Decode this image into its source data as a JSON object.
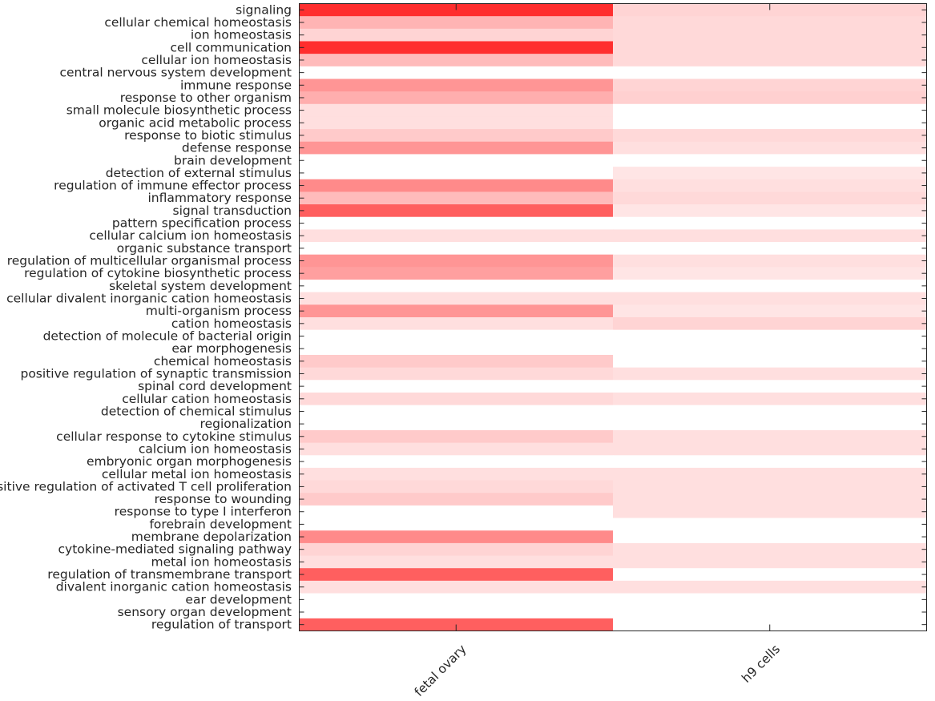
{
  "chart_data": {
    "type": "heatmap",
    "title": "",
    "xlabel": "",
    "ylabel": "",
    "color_low": "#ffffff",
    "color_high": "#ff2a2a",
    "value_range": [
      0,
      1
    ],
    "columns": [
      "fetal ovary",
      "h9 cells"
    ],
    "rows": [
      "signaling",
      "cellular chemical homeostasis",
      "ion homeostasis",
      "cell communication",
      "cellular ion homeostasis",
      "central nervous system development",
      "immune response",
      "response to other organism",
      "small molecule biosynthetic process",
      "organic acid metabolic process",
      "response to biotic stimulus",
      "defense response",
      "brain development",
      "detection of external stimulus",
      "regulation of immune effector process",
      "inflammatory response",
      "signal transduction",
      "pattern specification process",
      "cellular calcium ion homeostasis",
      "organic substance transport",
      "regulation of multicellular organismal process",
      "regulation of cytokine biosynthetic process",
      "skeletal system development",
      "cellular divalent inorganic cation homeostasis",
      "multi-organism process",
      "cation homeostasis",
      "detection of molecule of bacterial origin",
      "ear morphogenesis",
      "chemical homeostasis",
      "positive regulation of synaptic transmission",
      "spinal cord development",
      "cellular cation homeostasis",
      "detection of chemical stimulus",
      "regionalization",
      "cellular response to cytokine stimulus",
      "calcium ion homeostasis",
      "embryonic organ morphogenesis",
      "cellular metal ion homeostasis",
      "positive regulation of activated T cell proliferation",
      "response to wounding",
      "response to type I interferon",
      "forebrain development",
      "membrane depolarization",
      "cytokine-mediated signaling pathway",
      "metal ion homeostasis",
      "regulation of transmembrane transport",
      "divalent inorganic cation homeostasis",
      "ear development",
      "sensory organ development",
      "regulation of transport"
    ],
    "values": [
      [
        0.98,
        0.2
      ],
      [
        0.35,
        0.18
      ],
      [
        0.2,
        0.18
      ],
      [
        0.98,
        0.18
      ],
      [
        0.32,
        0.18
      ],
      [
        0.0,
        0.0
      ],
      [
        0.5,
        0.2
      ],
      [
        0.38,
        0.22
      ],
      [
        0.15,
        0.0
      ],
      [
        0.15,
        0.0
      ],
      [
        0.25,
        0.18
      ],
      [
        0.5,
        0.15
      ],
      [
        0.0,
        0.0
      ],
      [
        0.0,
        0.12
      ],
      [
        0.55,
        0.15
      ],
      [
        0.32,
        0.18
      ],
      [
        0.75,
        0.12
      ],
      [
        0.0,
        0.0
      ],
      [
        0.15,
        0.15
      ],
      [
        0.0,
        0.0
      ],
      [
        0.5,
        0.15
      ],
      [
        0.45,
        0.12
      ],
      [
        0.0,
        0.0
      ],
      [
        0.15,
        0.15
      ],
      [
        0.5,
        0.12
      ],
      [
        0.15,
        0.2
      ],
      [
        0.0,
        0.0
      ],
      [
        0.0,
        0.0
      ],
      [
        0.25,
        0.0
      ],
      [
        0.18,
        0.15
      ],
      [
        0.0,
        0.0
      ],
      [
        0.18,
        0.15
      ],
      [
        0.0,
        0.0
      ],
      [
        0.0,
        0.0
      ],
      [
        0.25,
        0.15
      ],
      [
        0.15,
        0.15
      ],
      [
        0.0,
        0.0
      ],
      [
        0.15,
        0.15
      ],
      [
        0.18,
        0.15
      ],
      [
        0.25,
        0.15
      ],
      [
        0.0,
        0.15
      ],
      [
        0.0,
        0.0
      ],
      [
        0.55,
        0.0
      ],
      [
        0.2,
        0.15
      ],
      [
        0.15,
        0.15
      ],
      [
        0.75,
        0.0
      ],
      [
        0.15,
        0.15
      ],
      [
        0.0,
        0.0
      ],
      [
        0.0,
        0.0
      ],
      [
        0.75,
        0.0
      ]
    ]
  }
}
